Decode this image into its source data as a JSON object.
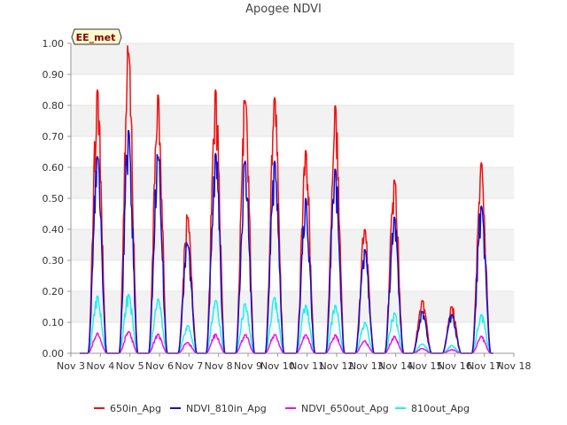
{
  "chart_data": {
    "type": "line",
    "title": "Apogee NDVI",
    "badge": "EE_met",
    "xlabel": "",
    "ylabel": "",
    "x_ticks": [
      "Nov 3",
      "Nov 4",
      "Nov 5",
      "Nov 6",
      "Nov 7",
      "Nov 8",
      "Nov 9",
      "Nov 10",
      "Nov 11",
      "Nov 12",
      "Nov 13",
      "Nov 14",
      "Nov 15",
      "Nov 16",
      "Nov 17",
      "Nov 18"
    ],
    "xlim": [
      3,
      18
    ],
    "y_ticks": [
      "0.00",
      "0.10",
      "0.20",
      "0.30",
      "0.40",
      "0.50",
      "0.60",
      "0.70",
      "0.80",
      "0.90",
      "1.00"
    ],
    "ylim": [
      0,
      1
    ],
    "background_bands": true,
    "legend_position": "bottom",
    "series": [
      {
        "name": "650in_Apg",
        "color": "#ee1111",
        "peaks": [
          [
            3.9,
            0.85
          ],
          [
            4.95,
            0.97
          ],
          [
            5.95,
            0.835
          ],
          [
            6.95,
            0.44
          ],
          [
            7.9,
            0.85
          ],
          [
            8.9,
            0.815
          ],
          [
            9.9,
            0.825
          ],
          [
            10.95,
            0.655
          ],
          [
            11.95,
            0.8
          ],
          [
            12.95,
            0.4
          ],
          [
            13.95,
            0.56
          ],
          [
            14.9,
            0.17
          ],
          [
            15.9,
            0.15
          ],
          [
            16.9,
            0.615
          ]
        ]
      },
      {
        "name": "NDVI_810in_Apg",
        "color": "#1111cc",
        "peaks": [
          [
            3.9,
            0.635
          ],
          [
            4.95,
            0.72
          ],
          [
            5.95,
            0.635
          ],
          [
            6.95,
            0.35
          ],
          [
            7.9,
            0.645
          ],
          [
            8.9,
            0.62
          ],
          [
            9.9,
            0.62
          ],
          [
            10.95,
            0.5
          ],
          [
            11.95,
            0.595
          ],
          [
            12.95,
            0.335
          ],
          [
            13.95,
            0.44
          ],
          [
            14.9,
            0.135
          ],
          [
            15.9,
            0.125
          ],
          [
            16.9,
            0.475
          ]
        ]
      },
      {
        "name": "NDVI_650out_Apg",
        "color": "#ee11ee",
        "peaks": [
          [
            3.9,
            0.065
          ],
          [
            4.95,
            0.07
          ],
          [
            5.95,
            0.062
          ],
          [
            6.95,
            0.035
          ],
          [
            7.9,
            0.062
          ],
          [
            8.9,
            0.06
          ],
          [
            9.9,
            0.06
          ],
          [
            10.95,
            0.06
          ],
          [
            11.95,
            0.06
          ],
          [
            12.95,
            0.04
          ],
          [
            13.95,
            0.055
          ],
          [
            14.9,
            0.015
          ],
          [
            15.9,
            0.012
          ],
          [
            16.9,
            0.055
          ]
        ]
      },
      {
        "name": "810out_Apg",
        "color": "#22eeee",
        "peaks": [
          [
            3.9,
            0.185
          ],
          [
            4.95,
            0.19
          ],
          [
            5.95,
            0.175
          ],
          [
            6.95,
            0.09
          ],
          [
            7.9,
            0.17
          ],
          [
            8.9,
            0.16
          ],
          [
            9.9,
            0.18
          ],
          [
            10.95,
            0.155
          ],
          [
            11.95,
            0.155
          ],
          [
            12.95,
            0.1
          ],
          [
            13.95,
            0.13
          ],
          [
            14.9,
            0.03
          ],
          [
            15.9,
            0.025
          ],
          [
            16.9,
            0.125
          ]
        ]
      }
    ]
  }
}
